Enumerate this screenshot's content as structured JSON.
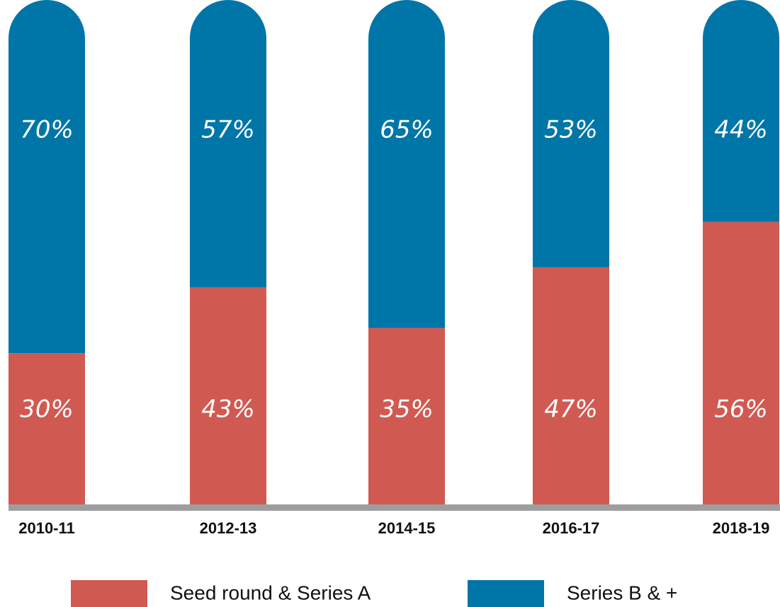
{
  "chart_data": {
    "type": "stacked-bar",
    "categories": [
      "2010-11",
      "2012-13",
      "2014-15",
      "2016-17",
      "2018-19"
    ],
    "series": [
      {
        "name": "Seed round & Series A",
        "color": "#d05a52",
        "values": [
          30,
          43,
          35,
          47,
          56
        ],
        "value_labels": [
          "30%",
          "43%",
          "35%",
          "47%",
          "56%"
        ]
      },
      {
        "name": "Series B & +",
        "color": "#0076a8",
        "values": [
          70,
          57,
          65,
          53,
          44
        ],
        "value_labels": [
          "70%",
          "57%",
          "65%",
          "53%",
          "44%"
        ]
      }
    ]
  }
}
